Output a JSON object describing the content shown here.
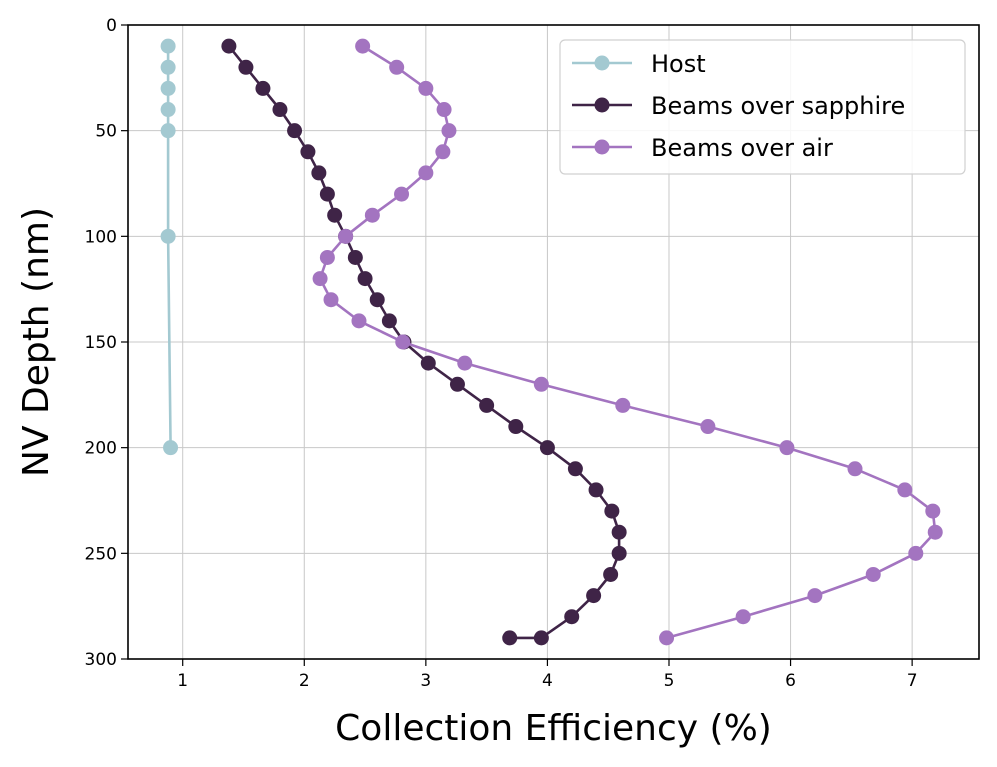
{
  "chart_data": {
    "type": "line",
    "title": "",
    "xlabel": "Collection Efficiency (%)",
    "ylabel": "NV Depth (nm)",
    "xlim": [
      0.55,
      7.55
    ],
    "ylim": [
      300,
      0
    ],
    "y_inverted": true,
    "grid": true,
    "legend_position": "top-right",
    "x_ticks": [
      "1",
      "2",
      "3",
      "4",
      "5",
      "6",
      "7"
    ],
    "y_ticks": [
      "0",
      "50",
      "100",
      "150",
      "200",
      "250",
      "300"
    ],
    "series": [
      {
        "name": "Host",
        "color": "#a3c9d1",
        "x": [
          0.88,
          0.88,
          0.88,
          0.88,
          0.88,
          0.88,
          0.9
        ],
        "y": [
          10,
          20,
          30,
          40,
          50,
          100,
          200
        ]
      },
      {
        "name": "Beams over sapphire",
        "color": "#3f2447",
        "x": [
          1.38,
          1.52,
          1.66,
          1.8,
          1.92,
          2.03,
          2.12,
          2.19,
          2.25,
          2.34,
          2.42,
          2.5,
          2.6,
          2.7,
          2.82,
          3.02,
          3.26,
          3.5,
          3.74,
          4.0,
          4.23,
          4.4,
          4.53,
          4.59,
          4.59,
          4.52,
          4.38,
          4.2,
          3.95,
          3.69
        ],
        "y": [
          10,
          20,
          30,
          40,
          50,
          60,
          70,
          80,
          90,
          100,
          110,
          120,
          130,
          140,
          150,
          160,
          170,
          180,
          190,
          200,
          210,
          220,
          230,
          240,
          250,
          260,
          270,
          280,
          290,
          290
        ]
      },
      {
        "name": "Beams over air",
        "color": "#a374c0",
        "x": [
          2.48,
          2.76,
          3.0,
          3.15,
          3.19,
          3.14,
          3.0,
          2.8,
          2.56,
          2.34,
          2.19,
          2.13,
          2.22,
          2.45,
          2.81,
          3.32,
          3.95,
          4.62,
          5.32,
          5.97,
          6.53,
          6.94,
          7.17,
          7.19,
          7.03,
          6.68,
          6.2,
          5.61,
          4.98
        ],
        "y": [
          10,
          20,
          30,
          40,
          50,
          60,
          70,
          80,
          90,
          100,
          110,
          120,
          130,
          140,
          150,
          160,
          170,
          180,
          190,
          200,
          210,
          220,
          230,
          240,
          250,
          260,
          270,
          280,
          290
        ]
      }
    ]
  }
}
